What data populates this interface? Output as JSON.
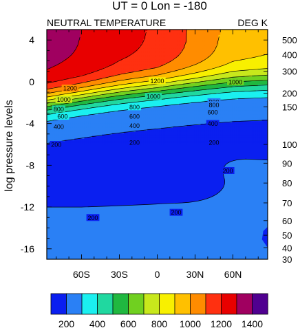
{
  "chart_data": {
    "type": "heatmap",
    "title": "UT = 0 Lon = -180",
    "subtitle_left": "NEUTRAL TEMPERATURE",
    "subtitle_right": "DEG K",
    "ylabel": "log pressure levels",
    "x_ticks": [
      {
        "lat": -60,
        "label": "60S"
      },
      {
        "lat": -30,
        "label": "30S"
      },
      {
        "lat": 0,
        "label": "0"
      },
      {
        "lat": 30,
        "label": "30N"
      },
      {
        "lat": 60,
        "label": "60N"
      }
    ],
    "xlim": [
      -87.5,
      87.5
    ],
    "ylim": [
      -17.0,
      5.0
    ],
    "y_ticks_left": [
      4,
      0,
      -4,
      -8,
      -12,
      -16
    ],
    "y_ticks_right": [
      {
        "label": "500",
        "lp": 4.0
      },
      {
        "label": "400",
        "lp": 2.6
      },
      {
        "label": "300",
        "lp": 1.0
      },
      {
        "label": "200",
        "lp": -1.1
      },
      {
        "label": "150",
        "lp": -2.4
      },
      {
        "label": "100",
        "lp": -6.0
      },
      {
        "label": "90",
        "lp": -7.8
      },
      {
        "label": "80",
        "lp": -9.7
      },
      {
        "label": "70",
        "lp": -11.6
      },
      {
        "label": "60",
        "lp": -13.3
      },
      {
        "label": "50",
        "lp": -14.7
      },
      {
        "label": "40",
        "lp": -15.9
      },
      {
        "label": "30",
        "lp": -17.0
      }
    ],
    "levels": [
      200,
      300,
      400,
      500,
      600,
      700,
      800,
      900,
      1000,
      1100,
      1200,
      1300,
      1400
    ],
    "colors": [
      "#0a1ff0",
      "#2a80f5",
      "#1bf0f0",
      "#20d8a0",
      "#20b840",
      "#70d020",
      "#c8e81c",
      "#f8f000",
      "#ffc000",
      "#ff8c00",
      "#ff3010",
      "#e80000",
      "#a00060",
      "#500090"
    ],
    "colorbar_labels": [
      "200",
      "400",
      "600",
      "800",
      "1000",
      "1200",
      "1400"
    ],
    "upper_profile": [
      {
        "lat": -87.5,
        "t": 1330
      },
      {
        "lat": -60,
        "t": 1300
      },
      {
        "lat": -30,
        "t": 1230
      },
      {
        "lat": 0,
        "t": 1190
      },
      {
        "lat": 30,
        "t": 1080
      },
      {
        "lat": 60,
        "t": 960
      },
      {
        "lat": 87.5,
        "t": 930
      }
    ],
    "contour_labels": [
      {
        "text": "1200",
        "lat": -69,
        "lp": -0.6
      },
      {
        "text": "1200",
        "lat": 0,
        "lp": 0.1
      },
      {
        "text": "1000",
        "lat": 62,
        "lp": 0.0
      },
      {
        "text": "1000",
        "lat": -74,
        "lp": -1.7
      },
      {
        "text": "1000",
        "lat": -3,
        "lp": -1.4
      },
      {
        "text": "900",
        "lat": 45,
        "lp": -1.9
      },
      {
        "text": "800",
        "lat": -78,
        "lp": -2.6
      },
      {
        "text": "800",
        "lat": -18,
        "lp": -2.4
      },
      {
        "text": "800",
        "lat": 45,
        "lp": -2.2
      },
      {
        "text": "600",
        "lat": -75,
        "lp": -3.3
      },
      {
        "text": "600",
        "lat": -18,
        "lp": -3.3
      },
      {
        "text": "600",
        "lat": 44,
        "lp": -2.9
      },
      {
        "text": "400",
        "lat": -78,
        "lp": -4.3
      },
      {
        "text": "400",
        "lat": -18,
        "lp": -4.2
      },
      {
        "text": "400",
        "lat": 44,
        "lp": -4.0
      },
      {
        "text": "200",
        "lat": -80,
        "lp": -6.0
      },
      {
        "text": "200",
        "lat": -18,
        "lp": -5.8
      },
      {
        "text": "200",
        "lat": 45,
        "lp": -5.8
      },
      {
        "text": "200",
        "lat": 56,
        "lp": -8.5
      },
      {
        "text": "200",
        "lat": -51,
        "lp": -13.0
      },
      {
        "text": "200",
        "lat": 15,
        "lp": -12.5
      }
    ]
  }
}
